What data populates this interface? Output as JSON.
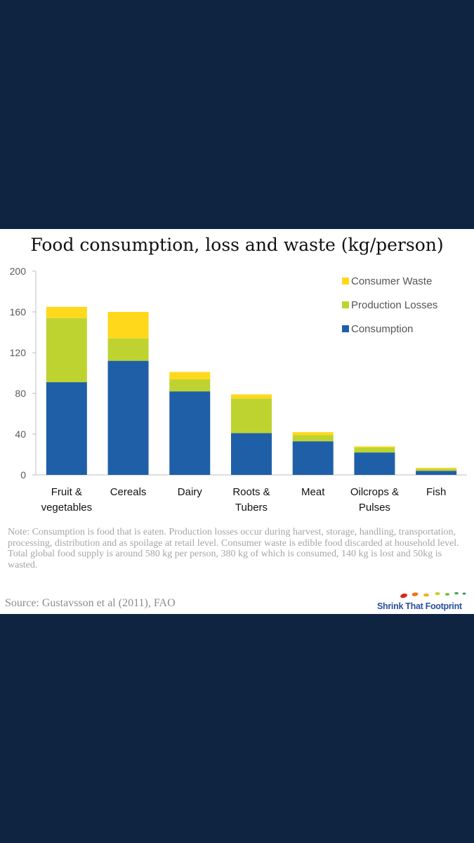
{
  "chart_data": {
    "type": "bar",
    "stacked": true,
    "title": "Food consumption, loss and waste (kg/person)",
    "categories": [
      [
        "Fruit &",
        "vegetables"
      ],
      [
        "Cereals"
      ],
      [
        "Dairy"
      ],
      [
        "Roots &",
        "Tubers"
      ],
      [
        "Meat"
      ],
      [
        "Oilcrops &",
        "Pulses"
      ],
      [
        "Fish"
      ]
    ],
    "series": [
      {
        "name": "Consumption",
        "color": "#1f5fa8",
        "values": [
          91,
          112,
          82,
          41,
          33,
          22,
          4
        ]
      },
      {
        "name": "Production Losses",
        "color": "#bed330",
        "values": [
          63,
          22,
          12,
          34,
          6,
          5,
          2
        ]
      },
      {
        "name": "Consumer Waste",
        "color": "#ffd81c",
        "values": [
          11,
          26,
          7,
          4,
          3,
          1,
          1
        ]
      }
    ],
    "ylim": [
      0,
      200
    ],
    "yticks": [
      0,
      40,
      80,
      120,
      160,
      200
    ],
    "grid": false,
    "legend_position": "top-right"
  },
  "note": "Note: Consumption is food that is eaten.  Production losses occur during harvest, storage, handling, transportation, processing, distribution and as spoilage at retail level. Consumer waste is edible food discarded at household level.  Total global food supply is around 580 kg per person, 380 kg of which is consumed, 140 kg is lost and 50kg is wasted.",
  "source": "Source:  Gustavsson et al (2011), FAO",
  "logo": {
    "text": "Shrink That Footprint"
  }
}
